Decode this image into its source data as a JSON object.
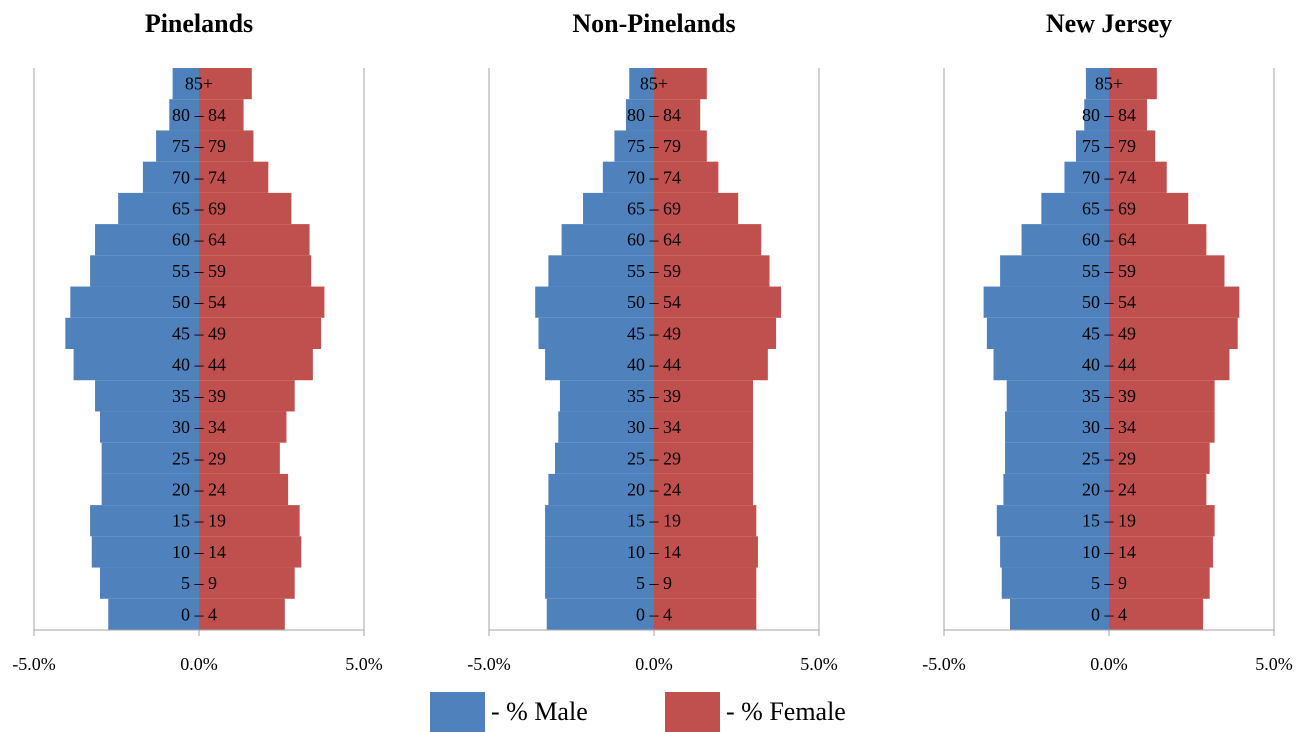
{
  "colors": {
    "male": "#4F81BD",
    "female": "#C0504D",
    "axis": "#a6a6a6"
  },
  "legend": {
    "male_label": "- % Male",
    "female_label": "- % Female"
  },
  "chart_data": [
    {
      "type": "bar",
      "orientation": "horizontal",
      "title": "Pinelands",
      "categories": [
        "0 – 4",
        "5 – 9",
        "10 – 14",
        "15 – 19",
        "20 – 24",
        "25 – 29",
        "30 – 34",
        "35 – 39",
        "40 – 44",
        "45 – 49",
        "50 – 54",
        "55 – 59",
        "60 – 64",
        "65 – 69",
        "70 – 74",
        "75 – 79",
        "80 – 84",
        "85+"
      ],
      "series": [
        {
          "name": "% Male",
          "values": [
            -2.75,
            -3.0,
            -3.25,
            -3.3,
            -2.95,
            -2.95,
            -3.0,
            -3.15,
            -3.8,
            -4.05,
            -3.9,
            -3.3,
            -3.15,
            -2.45,
            -1.7,
            -1.3,
            -0.9,
            -0.8
          ]
        },
        {
          "name": "% Female",
          "values": [
            2.6,
            2.9,
            3.1,
            3.05,
            2.7,
            2.45,
            2.65,
            2.9,
            3.45,
            3.7,
            3.8,
            3.4,
            3.35,
            2.8,
            2.1,
            1.65,
            1.35,
            1.6
          ]
        }
      ],
      "xlim": [
        -5,
        5
      ],
      "xticks": [
        "-5.0%",
        "0.0%",
        "5.0%"
      ]
    },
    {
      "type": "bar",
      "orientation": "horizontal",
      "title": "Non-Pinelands",
      "categories": [
        "0 – 4",
        "5 – 9",
        "10 – 14",
        "15 – 19",
        "20 – 24",
        "25 – 29",
        "30 – 34",
        "35 – 39",
        "40 – 44",
        "45 – 49",
        "50 – 54",
        "55 – 59",
        "60 – 64",
        "65 – 69",
        "70 – 74",
        "75 – 79",
        "80 – 84",
        "85+"
      ],
      "series": [
        {
          "name": "% Male",
          "values": [
            -3.25,
            -3.3,
            -3.3,
            -3.3,
            -3.2,
            -3.0,
            -2.9,
            -2.85,
            -3.3,
            -3.5,
            -3.6,
            -3.2,
            -2.8,
            -2.15,
            -1.55,
            -1.2,
            -0.85,
            -0.75
          ]
        },
        {
          "name": "% Female",
          "values": [
            3.1,
            3.1,
            3.15,
            3.1,
            3.0,
            3.0,
            3.0,
            3.0,
            3.45,
            3.7,
            3.85,
            3.5,
            3.25,
            2.55,
            1.95,
            1.6,
            1.4,
            1.6
          ]
        }
      ],
      "xlim": [
        -5,
        5
      ],
      "xticks": [
        "-5.0%",
        "0.0%",
        "5.0%"
      ]
    },
    {
      "type": "bar",
      "orientation": "horizontal",
      "title": "New Jersey",
      "categories": [
        "0 – 4",
        "5 – 9",
        "10 – 14",
        "15 – 19",
        "20 – 24",
        "25 – 29",
        "30 – 34",
        "35 – 39",
        "40 – 44",
        "45 – 49",
        "50 – 54",
        "55 – 59",
        "60 – 64",
        "65 – 69",
        "70 – 74",
        "75 – 79",
        "80 – 84",
        "85+"
      ],
      "series": [
        {
          "name": "% Male",
          "values": [
            -3.0,
            -3.25,
            -3.3,
            -3.4,
            -3.2,
            -3.15,
            -3.15,
            -3.1,
            -3.5,
            -3.7,
            -3.8,
            -3.3,
            -2.65,
            -2.05,
            -1.35,
            -1.0,
            -0.75,
            -0.7
          ]
        },
        {
          "name": "% Female",
          "values": [
            2.85,
            3.05,
            3.15,
            3.2,
            2.95,
            3.05,
            3.2,
            3.2,
            3.65,
            3.9,
            3.95,
            3.5,
            2.95,
            2.4,
            1.75,
            1.4,
            1.15,
            1.45
          ]
        }
      ],
      "xlim": [
        -5,
        5
      ],
      "xticks": [
        "-5.0%",
        "0.0%",
        "5.0%"
      ]
    }
  ]
}
